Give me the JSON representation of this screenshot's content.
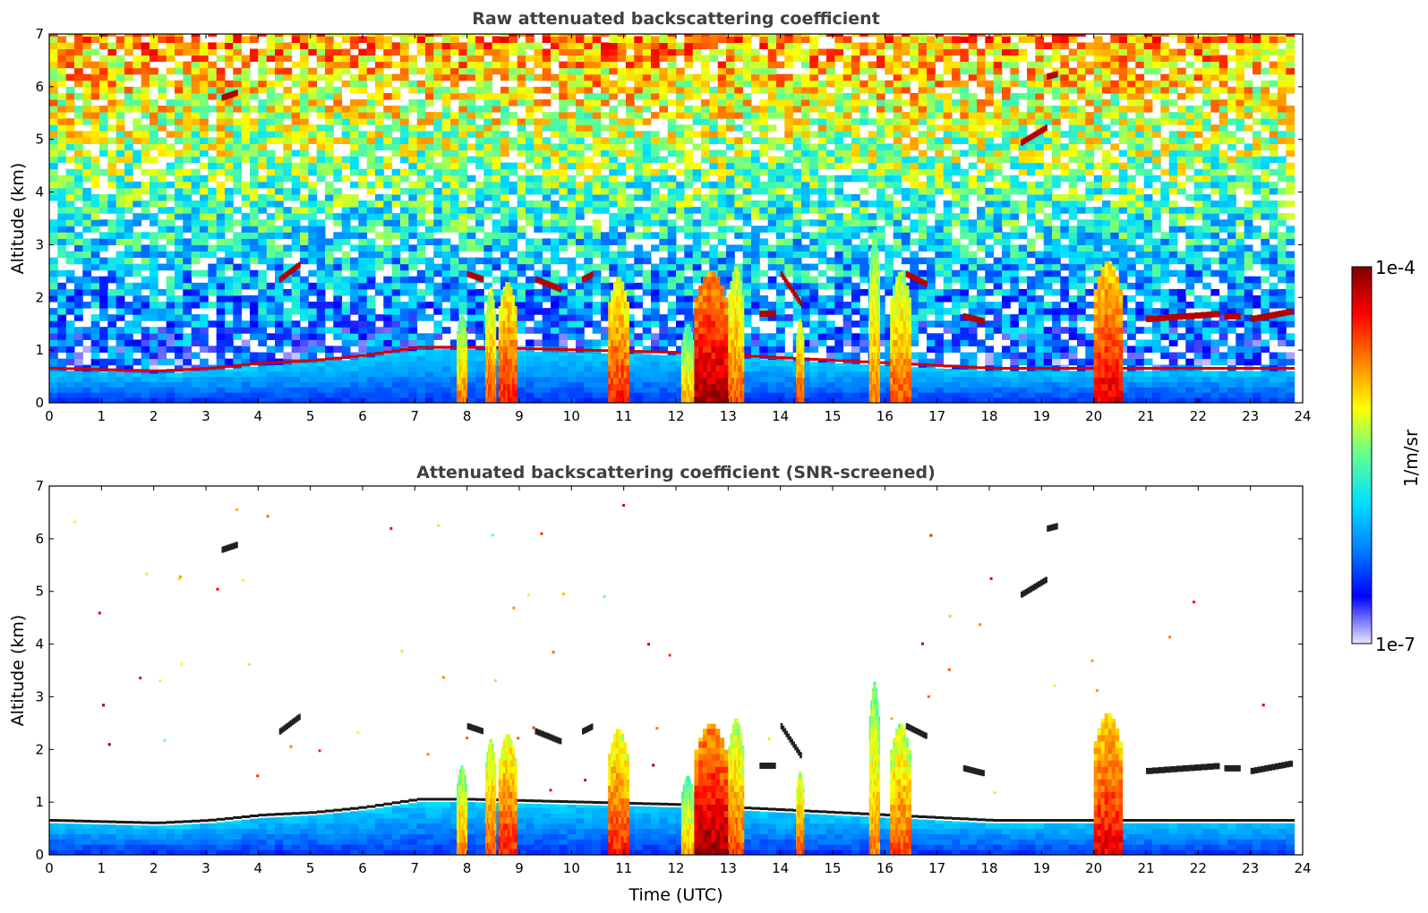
{
  "chart_data": [
    {
      "type": "heatmap",
      "title": "Raw attenuated backscattering coefficient",
      "xlabel": "",
      "ylabel": "Altitude (km)",
      "xlim": [
        0,
        24
      ],
      "ylim": [
        0,
        7
      ],
      "xticks": [
        "0",
        "1",
        "2",
        "3",
        "4",
        "5",
        "6",
        "7",
        "8",
        "9",
        "10",
        "11",
        "12",
        "13",
        "14",
        "15",
        "16",
        "17",
        "18",
        "19",
        "20",
        "21",
        "22",
        "23",
        "24"
      ],
      "yticks": [
        "0",
        "1",
        "2",
        "3",
        "4",
        "5",
        "6",
        "7"
      ],
      "data_end_time": 23.8,
      "boundary_layer_top_km": [
        [
          0,
          0.6
        ],
        [
          2,
          0.55
        ],
        [
          3,
          0.6
        ],
        [
          4,
          0.7
        ],
        [
          5,
          0.75
        ],
        [
          6,
          0.85
        ],
        [
          7,
          1.0
        ],
        [
          8,
          1.0
        ],
        [
          12,
          0.9
        ],
        [
          14,
          0.8
        ],
        [
          16,
          0.7
        ],
        [
          18,
          0.6
        ],
        [
          20,
          0.6
        ],
        [
          22,
          0.6
        ],
        [
          23.8,
          0.6
        ]
      ],
      "rain_shafts": [
        {
          "start": 7.8,
          "end": 8.0,
          "top_km": 1.7,
          "level": 0.75
        },
        {
          "start": 8.35,
          "end": 8.55,
          "top_km": 2.2,
          "level": 0.8
        },
        {
          "start": 8.6,
          "end": 8.95,
          "top_km": 2.3,
          "level": 0.85
        },
        {
          "start": 10.7,
          "end": 11.1,
          "top_km": 2.4,
          "level": 0.85
        },
        {
          "start": 12.1,
          "end": 12.35,
          "top_km": 1.5,
          "level": 0.7
        },
        {
          "start": 12.35,
          "end": 13.0,
          "top_km": 2.5,
          "level": 0.97
        },
        {
          "start": 13.0,
          "end": 13.3,
          "top_km": 2.6,
          "level": 0.8
        },
        {
          "start": 14.3,
          "end": 14.45,
          "top_km": 1.6,
          "level": 0.8
        },
        {
          "start": 15.7,
          "end": 15.9,
          "top_km": 3.3,
          "level": 0.75
        },
        {
          "start": 16.1,
          "end": 16.5,
          "top_km": 2.5,
          "level": 0.8
        },
        {
          "start": 20.0,
          "end": 20.55,
          "top_km": 2.7,
          "level": 0.9
        }
      ],
      "cloud_layers": [
        {
          "x": [
            4.4,
            4.8
          ],
          "y": [
            2.3,
            2.6
          ]
        },
        {
          "x": [
            3.3,
            3.6
          ],
          "y": [
            5.75,
            5.85
          ]
        },
        {
          "x": [
            8.0,
            8.3
          ],
          "y": [
            2.4,
            2.3
          ]
        },
        {
          "x": [
            9.3,
            9.8
          ],
          "y": [
            2.3,
            2.1
          ]
        },
        {
          "x": [
            10.2,
            10.4
          ],
          "y": [
            2.3,
            2.4
          ]
        },
        {
          "x": [
            13.6,
            13.9
          ],
          "y": [
            1.65,
            1.65
          ]
        },
        {
          "x": [
            14.0,
            14.4
          ],
          "y": [
            2.4,
            1.8
          ]
        },
        {
          "x": [
            16.4,
            16.8
          ],
          "y": [
            2.4,
            2.2
          ]
        },
        {
          "x": [
            17.5,
            17.9
          ],
          "y": [
            1.6,
            1.5
          ]
        },
        {
          "x": [
            21.0,
            22.4
          ],
          "y": [
            1.55,
            1.65
          ]
        },
        {
          "x": [
            22.5,
            22.8
          ],
          "y": [
            1.6,
            1.6
          ]
        },
        {
          "x": [
            23.0,
            23.8
          ],
          "y": [
            1.55,
            1.7
          ]
        },
        {
          "x": [
            19.1,
            19.3
          ],
          "y": [
            6.15,
            6.2
          ]
        },
        {
          "x": [
            18.6,
            19.1
          ],
          "y": [
            4.9,
            5.2
          ]
        }
      ]
    },
    {
      "type": "heatmap",
      "title": "Attenuated backscattering coefficient (SNR-screened)",
      "xlabel": "Time (UTC)",
      "ylabel": "Altitude (km)",
      "xlim": [
        0,
        24
      ],
      "ylim": [
        0,
        7
      ],
      "xticks": [
        "0",
        "1",
        "2",
        "3",
        "4",
        "5",
        "6",
        "7",
        "8",
        "9",
        "10",
        "11",
        "12",
        "13",
        "14",
        "15",
        "16",
        "17",
        "18",
        "19",
        "20",
        "21",
        "22",
        "23",
        "24"
      ],
      "yticks": [
        "0",
        "1",
        "2",
        "3",
        "4",
        "5",
        "6",
        "7"
      ],
      "screened": true
    }
  ],
  "colorbar": {
    "label": "1/m/sr",
    "max_label": "1e-4",
    "min_label": "1e-7",
    "scale": "log",
    "colormap": [
      "#e8e8ff",
      "#0000ff",
      "#0080ff",
      "#00e0ff",
      "#60ff90",
      "#ffff00",
      "#ff8000",
      "#ff0000",
      "#800000"
    ]
  }
}
